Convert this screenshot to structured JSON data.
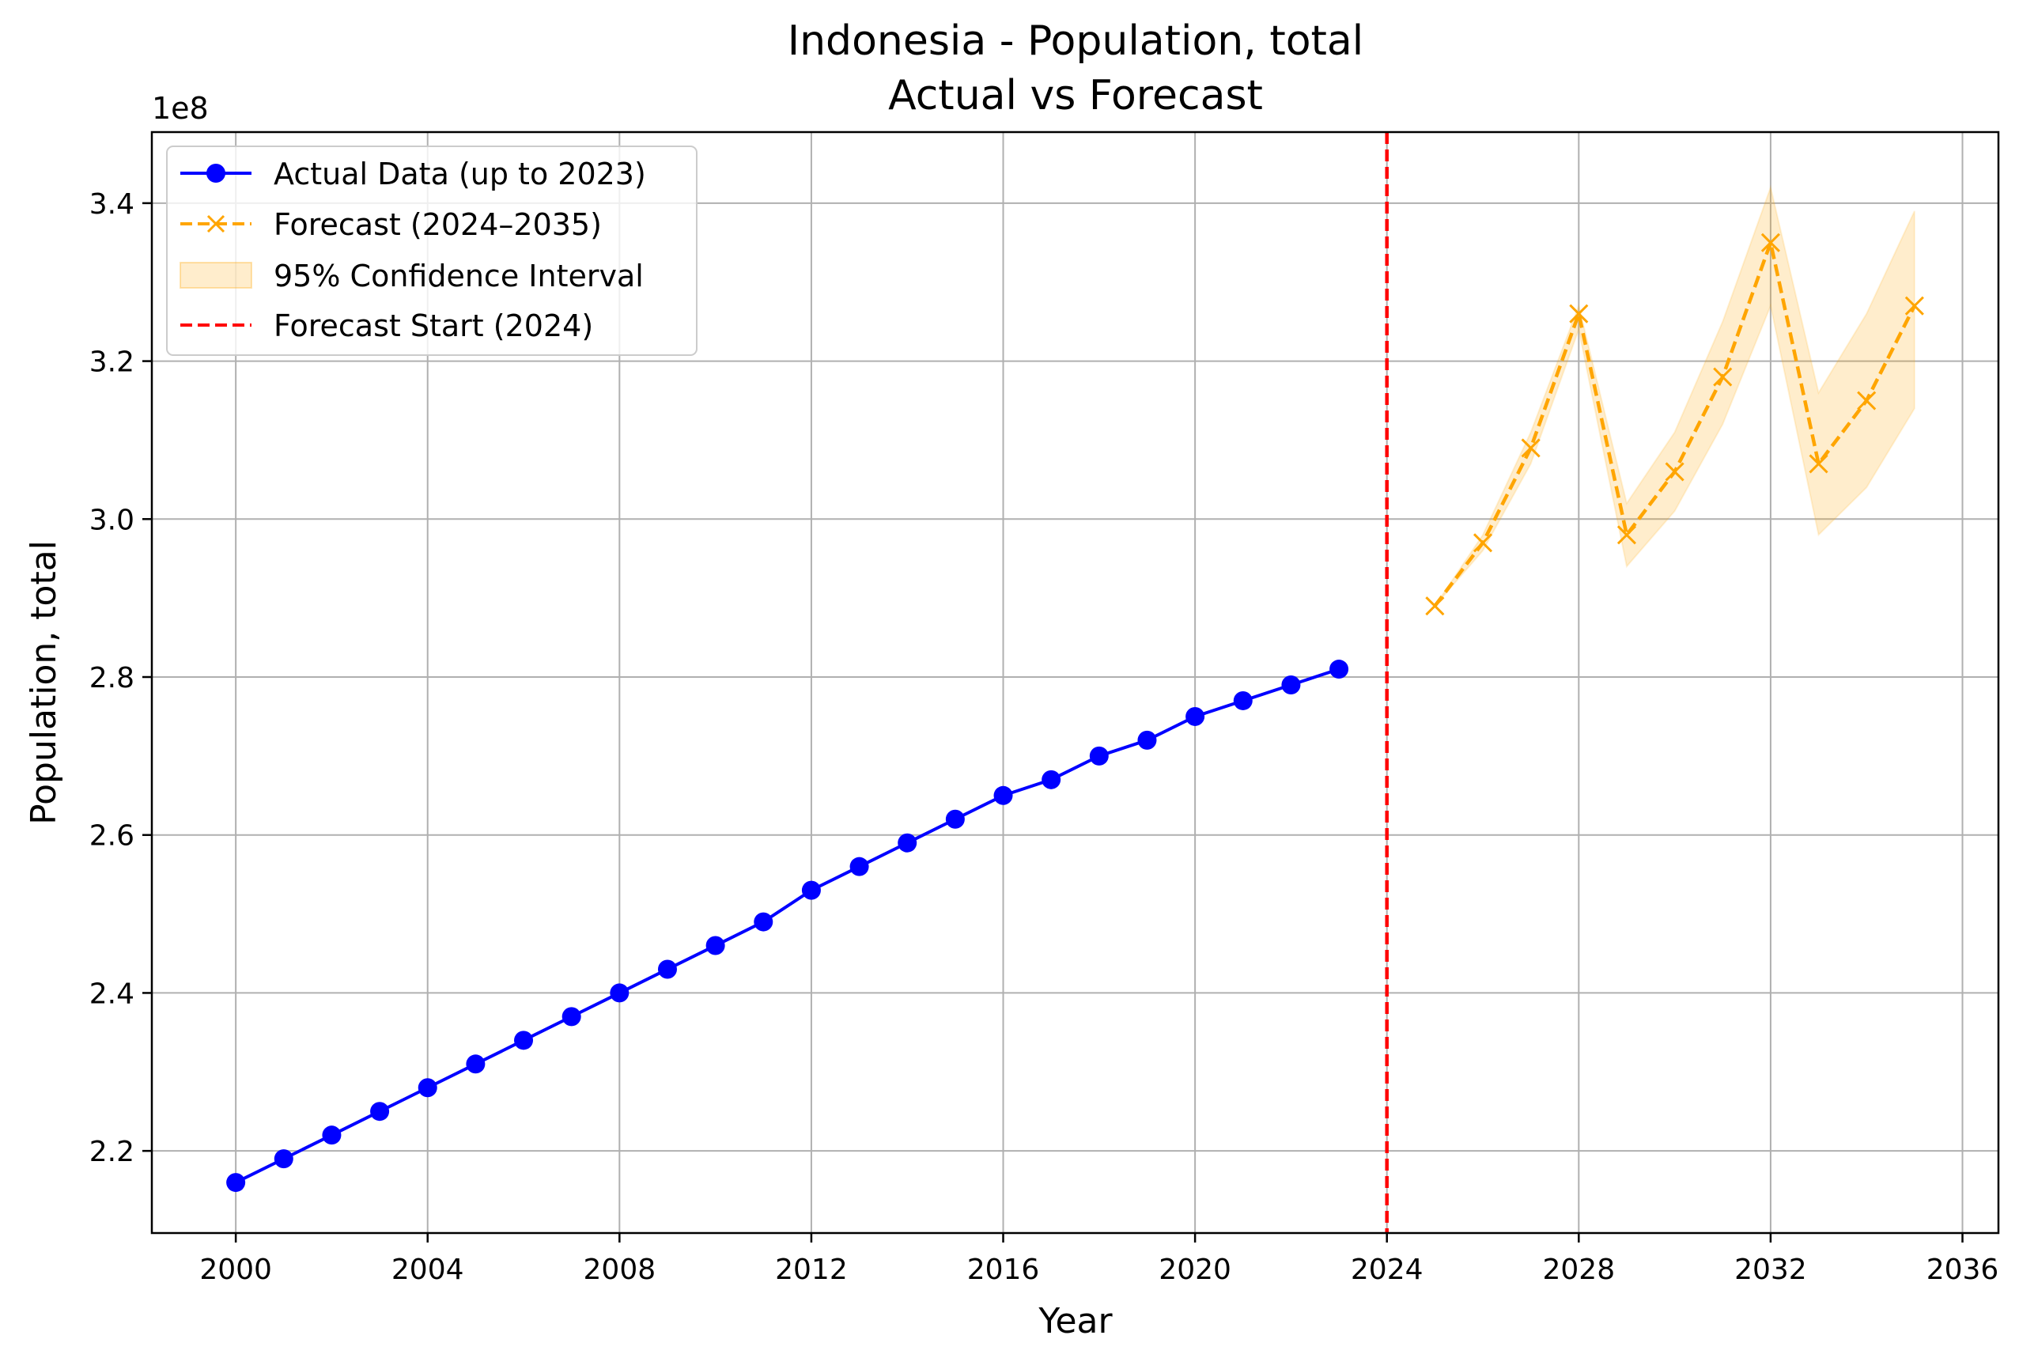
{
  "chart_data": {
    "type": "line",
    "title": "Indonesia - Population, total",
    "subtitle": "Actual vs Forecast",
    "xlabel": "Year",
    "ylabel": "Population, total",
    "y_offset_label": "1e8",
    "y_scale_note": "values in units of 1e8",
    "xlim": [
      1998.25,
      2036.75
    ],
    "ylim": [
      2.096,
      3.49
    ],
    "x_ticks": [
      "2000",
      "2004",
      "2008",
      "2012",
      "2016",
      "2020",
      "2024",
      "2028",
      "2032",
      "2036"
    ],
    "y_ticks": [
      "2.2",
      "2.4",
      "2.6",
      "2.8",
      "3.0",
      "3.2",
      "3.4"
    ],
    "grid": true,
    "legend_position": "upper-left",
    "legend": {
      "actual": "Actual Data (up to 2023)",
      "forecast": "Forecast (2024–2035)",
      "ci": "95% Confidence Interval",
      "start": "Forecast Start (2024)"
    },
    "colors": {
      "actual": "#0000ff",
      "forecast": "#ffa500",
      "ci_fill": "#ffa500",
      "start_line": "#ff0000",
      "grid": "#b0b0b0"
    },
    "forecast_start_x": 2024,
    "series": [
      {
        "name": "Actual Data (up to 2023)",
        "style": "solid",
        "marker": "circle",
        "x": [
          2000,
          2001,
          2002,
          2003,
          2004,
          2005,
          2006,
          2007,
          2008,
          2009,
          2010,
          2011,
          2012,
          2013,
          2014,
          2015,
          2016,
          2017,
          2018,
          2019,
          2020,
          2021,
          2022,
          2023
        ],
        "y": [
          2.16,
          2.19,
          2.22,
          2.25,
          2.28,
          2.31,
          2.34,
          2.37,
          2.4,
          2.43,
          2.46,
          2.49,
          2.53,
          2.56,
          2.59,
          2.62,
          2.65,
          2.67,
          2.7,
          2.72,
          2.75,
          2.77,
          2.79,
          2.81
        ]
      },
      {
        "name": "Forecast (2024–2035)",
        "style": "dashed",
        "marker": "x",
        "x": [
          2025,
          2026,
          2027,
          2028,
          2029,
          2030,
          2031,
          2032,
          2033,
          2034,
          2035
        ],
        "y": [
          2.89,
          2.97,
          3.09,
          3.26,
          2.98,
          3.06,
          3.18,
          3.35,
          3.07,
          3.15,
          3.27
        ]
      }
    ],
    "confidence_interval": {
      "name": "95% Confidence Interval",
      "x": [
        2025,
        2026,
        2027,
        2028,
        2029,
        2030,
        2031,
        2032,
        2033,
        2034,
        2035
      ],
      "lower": [
        2.89,
        2.96,
        3.07,
        3.24,
        2.94,
        3.01,
        3.12,
        3.27,
        2.98,
        3.04,
        3.14
      ],
      "upper": [
        2.89,
        2.98,
        3.11,
        3.27,
        3.02,
        3.11,
        3.25,
        3.42,
        3.16,
        3.26,
        3.39
      ]
    }
  }
}
